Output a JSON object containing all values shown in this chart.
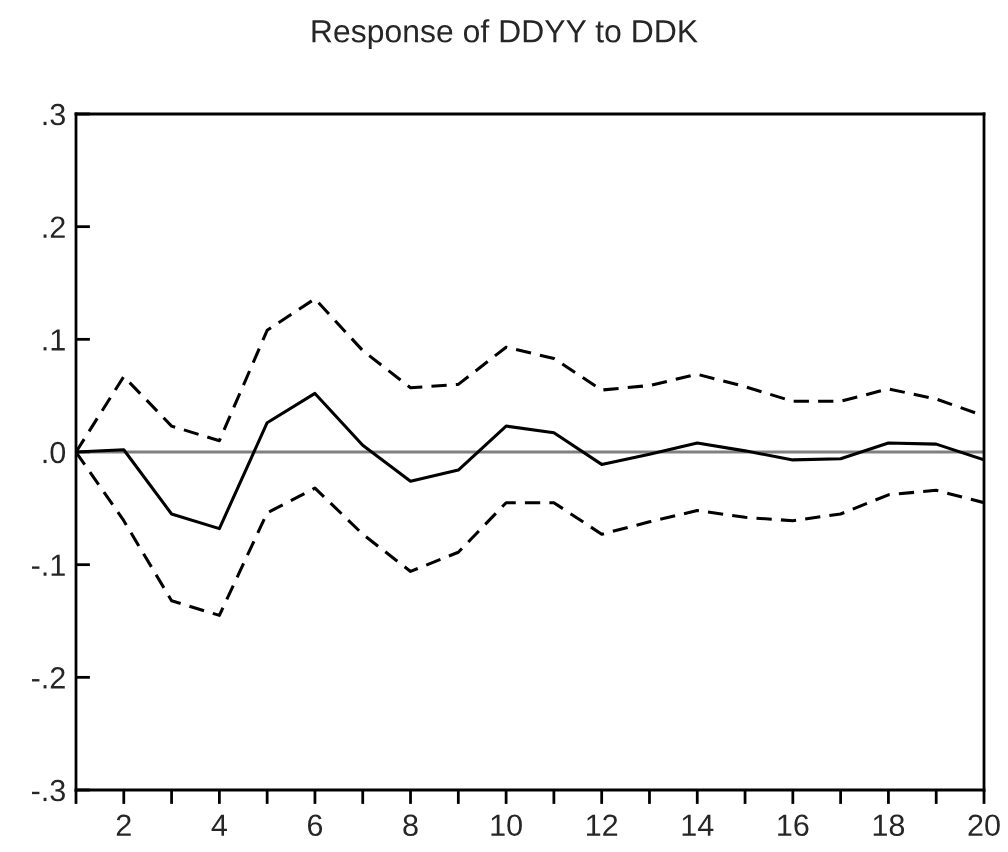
{
  "chart_data": {
    "type": "line",
    "title": "Response of DDYY to DDK",
    "x": [
      1,
      2,
      3,
      4,
      5,
      6,
      7,
      8,
      9,
      10,
      11,
      12,
      13,
      14,
      15,
      16,
      17,
      18,
      19,
      20
    ],
    "series": [
      {
        "color": "#000000",
        "line_style": "solid",
        "values": [
          0,
          0.002,
          -0.055,
          -0.068,
          0.026,
          0.052,
          0.006,
          -0.026,
          -0.016,
          0.023,
          0.017,
          -0.011,
          -0.002,
          0.008,
          0.001,
          -0.007,
          -0.006,
          0.008,
          0.007,
          -0.007
        ]
      },
      {
        "color": "#000000",
        "line_style": "dashed",
        "values": [
          0,
          0.067,
          0.023,
          0.01,
          0.108,
          0.136,
          0.09,
          0.057,
          0.06,
          0.093,
          0.083,
          0.055,
          0.059,
          0.069,
          0.058,
          0.045,
          0.045,
          0.056,
          0.047,
          0.032
        ]
      },
      {
        "color": "#000000",
        "line_style": "dashed",
        "values": [
          0,
          -0.061,
          -0.132,
          -0.145,
          -0.054,
          -0.032,
          -0.073,
          -0.106,
          -0.089,
          -0.045,
          -0.045,
          -0.073,
          -0.062,
          -0.052,
          -0.058,
          -0.061,
          -0.055,
          -0.038,
          -0.034,
          -0.045
        ]
      }
    ],
    "xlim": [
      1,
      20
    ],
    "xticks": [
      {
        "value": 1,
        "label": null
      },
      2,
      {
        "value": 3,
        "label": null
      },
      4,
      {
        "value": 5,
        "label": null
      },
      6,
      {
        "value": 7,
        "label": null
      },
      8,
      {
        "value": 9,
        "label": null
      },
      10,
      {
        "value": 11,
        "label": null
      },
      12,
      {
        "value": 13,
        "label": null
      },
      14,
      {
        "value": 15,
        "label": null
      },
      16,
      {
        "value": 17,
        "label": null
      },
      18,
      {
        "value": 19,
        "label": null
      },
      20
    ],
    "ylim": [
      -0.3,
      0.3
    ],
    "yticks": [
      {
        "value": -0.3,
        "label": "-.3"
      },
      {
        "value": -0.2,
        "label": "-.2"
      },
      {
        "value": -0.1,
        "label": "-.1"
      },
      {
        "value": 0,
        "label": ".0"
      },
      {
        "value": 0.1,
        "label": ".1"
      },
      {
        "value": 0.2,
        "label": ".2"
      },
      {
        "value": 0.3,
        "label": ".3"
      }
    ],
    "ref_lines": [
      {
        "axis": "y",
        "value": 0,
        "color": "#808080"
      }
    ],
    "grid": false,
    "legend": false
  }
}
